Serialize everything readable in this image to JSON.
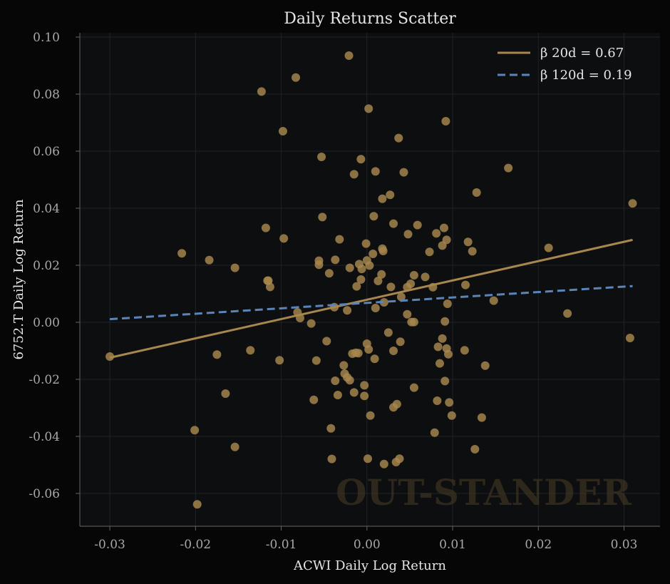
{
  "chart_data": {
    "type": "scatter",
    "title": "Daily Returns Scatter",
    "xlabel": "ACWI Daily Log Return",
    "ylabel": "6752.T Daily Log Return",
    "xlim": [
      -0.0335,
      0.0342
    ],
    "ylim": [
      -0.0715,
      0.1015
    ],
    "xticks": [
      -0.03,
      -0.02,
      -0.01,
      0.0,
      0.01,
      0.02,
      0.03
    ],
    "xtick_labels": [
      "-0.03",
      "-0.02",
      "-0.01",
      "0.00",
      "0.01",
      "0.02",
      "0.03"
    ],
    "yticks": [
      -0.06,
      -0.04,
      -0.02,
      0.0,
      0.02,
      0.04,
      0.06,
      0.08,
      0.1
    ],
    "ytick_labels": [
      "-0.06",
      "-0.04",
      "-0.02",
      "0.00",
      "0.02",
      "0.04",
      "0.06",
      "0.08",
      "0.10"
    ],
    "grid": true,
    "legend_position": "top-right",
    "watermark": "OUT-STANDER",
    "colors": {
      "points": "#a8874e",
      "beta20": "#a8874e",
      "beta120": "#5b84b8",
      "plot_bg": "#0d0e10",
      "page_bg": "#060606"
    },
    "points": [
      [
        -0.03,
        -0.012
      ],
      [
        -0.0216,
        0.0242
      ],
      [
        -0.0201,
        -0.0378
      ],
      [
        -0.0198,
        -0.0638
      ],
      [
        -0.0184,
        0.0218
      ],
      [
        -0.0175,
        -0.0113
      ],
      [
        -0.0165,
        -0.025
      ],
      [
        -0.0154,
        0.0191
      ],
      [
        -0.0154,
        -0.0437
      ],
      [
        -0.0136,
        -0.0098
      ],
      [
        -0.0123,
        0.0809
      ],
      [
        -0.0118,
        0.0331
      ],
      [
        -0.0116,
        0.0146
      ],
      [
        -0.0115,
        0.0146
      ],
      [
        -0.0113,
        0.0124
      ],
      [
        -0.0102,
        -0.0133
      ],
      [
        -0.0098,
        0.067
      ],
      [
        -0.0097,
        0.0294
      ],
      [
        -0.0083,
        0.0858
      ],
      [
        -0.0081,
        0.0035
      ],
      [
        -0.0078,
        0.0015
      ],
      [
        -0.0065,
        -0.0004
      ],
      [
        -0.0062,
        -0.0272
      ],
      [
        -0.0059,
        -0.0134
      ],
      [
        -0.0056,
        0.0216
      ],
      [
        -0.0056,
        0.0202
      ],
      [
        -0.0053,
        0.058
      ],
      [
        -0.0052,
        0.0369
      ],
      [
        -0.0047,
        -0.0066
      ],
      [
        -0.0044,
        0.0172
      ],
      [
        -0.0042,
        -0.0372
      ],
      [
        -0.0041,
        -0.0479
      ],
      [
        -0.0038,
        0.0053
      ],
      [
        -0.0037,
        0.0219
      ],
      [
        -0.0037,
        -0.0205
      ],
      [
        -0.0034,
        -0.0255
      ],
      [
        -0.0032,
        0.0291
      ],
      [
        -0.0027,
        -0.0151
      ],
      [
        -0.0026,
        -0.018
      ],
      [
        -0.0023,
        0.0042
      ],
      [
        -0.0023,
        -0.0193
      ],
      [
        -0.0021,
        0.0935
      ],
      [
        -0.002,
        -0.0203
      ],
      [
        -0.002,
        0.0191
      ],
      [
        -0.0017,
        -0.011
      ],
      [
        -0.0015,
        -0.0246
      ],
      [
        -0.0015,
        0.0519
      ],
      [
        -0.0013,
        -0.0107
      ],
      [
        -0.0012,
        0.0126
      ],
      [
        -0.001,
        -0.0108
      ],
      [
        -0.0009,
        0.0204
      ],
      [
        -0.0007,
        0.0572
      ],
      [
        -0.0007,
        0.015
      ],
      [
        -0.0006,
        0.0187
      ],
      [
        -0.0003,
        -0.0258
      ],
      [
        -0.0003,
        -0.0221
      ],
      [
        -0.0001,
        0.0276
      ],
      [
        0.0,
        -0.0075
      ],
      [
        0.0,
        0.0217
      ],
      [
        0.0001,
        -0.0478
      ],
      [
        0.0002,
        0.0749
      ],
      [
        0.0002,
        -0.0095
      ],
      [
        0.0003,
        0.0199
      ],
      [
        0.0004,
        -0.0327
      ],
      [
        0.0007,
        0.024
      ],
      [
        0.0008,
        0.0372
      ],
      [
        0.0009,
        -0.0128
      ],
      [
        0.001,
        0.0529
      ],
      [
        0.001,
        0.005
      ],
      [
        0.0013,
        0.0145
      ],
      [
        0.0017,
        0.0168
      ],
      [
        0.0018,
        0.0258
      ],
      [
        0.0018,
        0.0433
      ],
      [
        0.0019,
        0.025
      ],
      [
        0.002,
        -0.0497
      ],
      [
        0.002,
        0.007
      ],
      [
        0.0025,
        -0.0036
      ],
      [
        0.0027,
        0.0447
      ],
      [
        0.0028,
        0.0124
      ],
      [
        0.0031,
        0.0346
      ],
      [
        0.0031,
        -0.01
      ],
      [
        0.0031,
        -0.0298
      ],
      [
        0.0034,
        -0.049
      ],
      [
        0.0035,
        -0.0287
      ],
      [
        0.0037,
        0.0646
      ],
      [
        0.0038,
        -0.0478
      ],
      [
        0.0039,
        -0.0068
      ],
      [
        0.004,
        0.0089
      ],
      [
        0.0043,
        0.0526
      ],
      [
        0.0047,
        0.0028
      ],
      [
        0.0047,
        0.0123
      ],
      [
        0.0048,
        0.0309
      ],
      [
        0.0051,
        0.0135
      ],
      [
        0.0052,
        0.0001
      ],
      [
        0.0055,
        0.0001
      ],
      [
        0.0055,
        0.0165
      ],
      [
        0.0055,
        -0.0229
      ],
      [
        0.0059,
        0.0341
      ],
      [
        0.0068,
        0.0159
      ],
      [
        0.0073,
        0.0247
      ],
      [
        0.0077,
        0.0123
      ],
      [
        0.0079,
        -0.0387
      ],
      [
        0.0081,
        0.0312
      ],
      [
        0.0082,
        -0.0275
      ],
      [
        0.0083,
        -0.0086
      ],
      [
        0.0085,
        -0.0144
      ],
      [
        0.0088,
        -0.0057
      ],
      [
        0.0088,
        0.0269
      ],
      [
        0.009,
        0.0331
      ],
      [
        0.0091,
        -0.0206
      ],
      [
        0.0091,
        0.0003
      ],
      [
        0.0092,
        0.0705
      ],
      [
        0.0093,
        -0.0092
      ],
      [
        0.0093,
        0.0289
      ],
      [
        0.0094,
        0.0065
      ],
      [
        0.0095,
        -0.0112
      ],
      [
        0.0096,
        -0.0281
      ],
      [
        0.0099,
        -0.0327
      ],
      [
        0.0114,
        -0.0098
      ],
      [
        0.0115,
        0.0131
      ],
      [
        0.0118,
        0.0282
      ],
      [
        0.0123,
        0.0249
      ],
      [
        0.0126,
        -0.0445
      ],
      [
        0.0128,
        0.0455
      ],
      [
        0.0134,
        -0.0334
      ],
      [
        0.0138,
        -0.0152
      ],
      [
        0.0148,
        0.0076
      ],
      [
        0.0165,
        0.0541
      ],
      [
        0.0212,
        0.0261
      ],
      [
        0.0234,
        0.0031
      ],
      [
        0.0307,
        -0.0055
      ],
      [
        0.031,
        0.0417
      ]
    ],
    "series": [
      {
        "name": "β 20d = 0.67",
        "style": "solid",
        "x": [
          -0.03,
          0.031
        ],
        "y": [
          -0.0124,
          0.0289
        ]
      },
      {
        "name": "β 120d = 0.19",
        "style": "dashed",
        "x": [
          -0.03,
          0.031
        ],
        "y": [
          0.0011,
          0.0127
        ]
      }
    ]
  }
}
